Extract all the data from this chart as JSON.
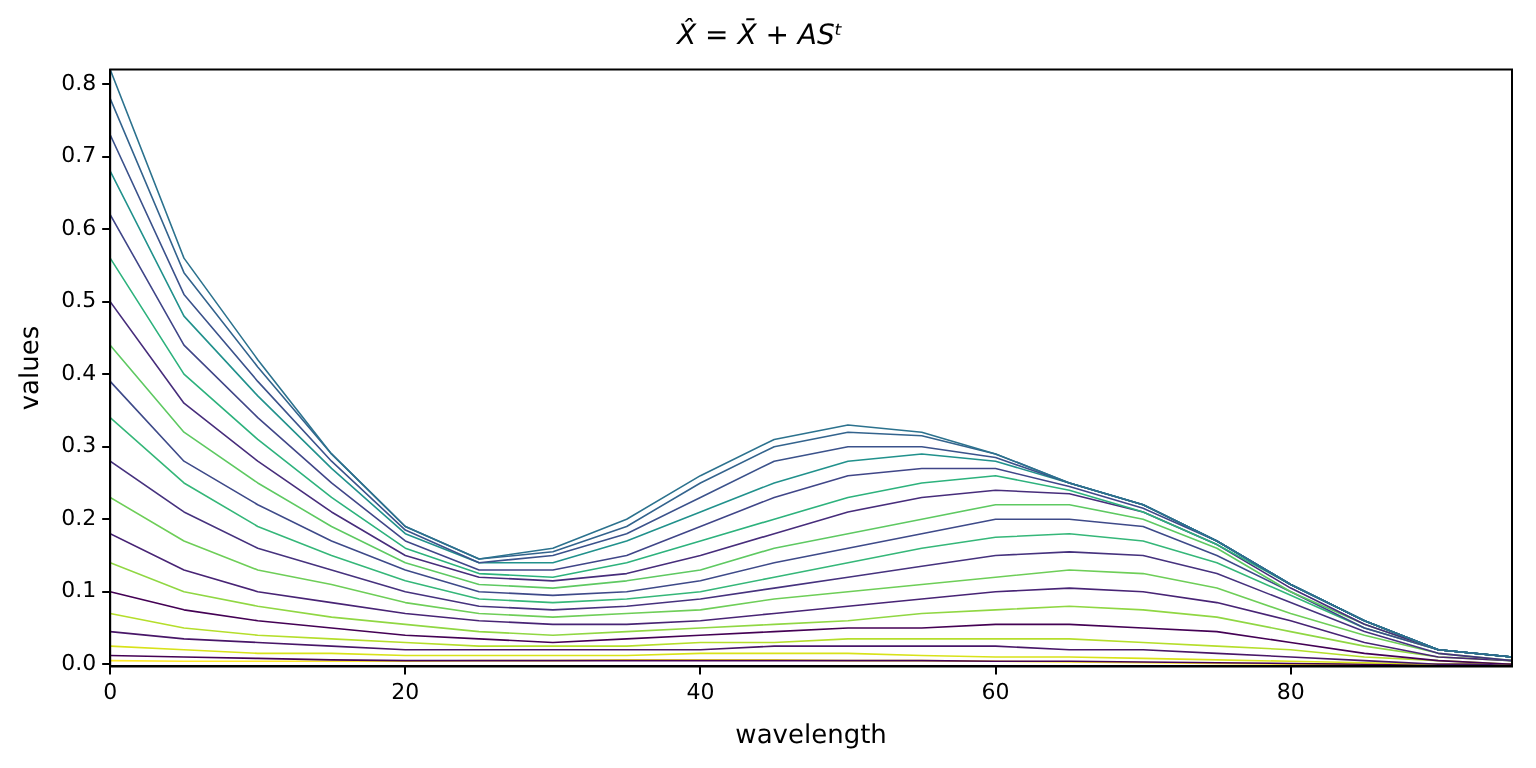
{
  "chart_data": {
    "type": "line",
    "title": "X̂ = X̄ + ASᵗ",
    "xlabel": "wavelength",
    "ylabel": "values",
    "x": [
      0,
      5,
      10,
      15,
      20,
      25,
      30,
      35,
      40,
      45,
      50,
      55,
      60,
      65,
      70,
      75,
      80,
      85,
      90,
      95
    ],
    "xlim": [
      0,
      95
    ],
    "xticks": [
      0,
      20,
      40,
      60,
      80
    ],
    "ylim": [
      -0.003,
      0.82
    ],
    "yticks": [
      {
        "value": 0,
        "label": "0.0"
      },
      0.1,
      0.2,
      0.3,
      0.4,
      0.5,
      0.6,
      0.7,
      0.8
    ],
    "grid": false,
    "legend": false,
    "series": [
      {
        "color": "#2c728e",
        "values": [
          0.82,
          0.56,
          0.42,
          0.29,
          0.19,
          0.145,
          0.16,
          0.2,
          0.26,
          0.31,
          0.33,
          0.32,
          0.29,
          0.25,
          0.22,
          0.17,
          0.11,
          0.06,
          0.02,
          0.01
        ]
      },
      {
        "color": "#33638d",
        "values": [
          0.78,
          0.54,
          0.41,
          0.29,
          0.19,
          0.145,
          0.155,
          0.19,
          0.25,
          0.3,
          0.32,
          0.315,
          0.29,
          0.25,
          0.22,
          0.17,
          0.11,
          0.06,
          0.02,
          0.01
        ]
      },
      {
        "color": "#3b528b",
        "values": [
          0.73,
          0.51,
          0.39,
          0.28,
          0.185,
          0.14,
          0.15,
          0.18,
          0.23,
          0.28,
          0.3,
          0.3,
          0.285,
          0.25,
          0.22,
          0.17,
          0.11,
          0.06,
          0.02,
          0.01
        ]
      },
      {
        "color": "#21918c",
        "values": [
          0.68,
          0.48,
          0.37,
          0.27,
          0.18,
          0.14,
          0.14,
          0.17,
          0.21,
          0.25,
          0.28,
          0.29,
          0.28,
          0.25,
          0.22,
          0.17,
          0.11,
          0.06,
          0.02,
          0.01
        ]
      },
      {
        "color": "#404688",
        "values": [
          0.62,
          0.44,
          0.34,
          0.25,
          0.17,
          0.13,
          0.13,
          0.15,
          0.19,
          0.23,
          0.26,
          0.27,
          0.27,
          0.245,
          0.215,
          0.17,
          0.11,
          0.06,
          0.02,
          0.01
        ]
      },
      {
        "color": "#2db27d",
        "values": [
          0.56,
          0.4,
          0.31,
          0.23,
          0.16,
          0.125,
          0.12,
          0.14,
          0.17,
          0.2,
          0.23,
          0.25,
          0.26,
          0.24,
          0.21,
          0.165,
          0.11,
          0.06,
          0.02,
          0.01
        ]
      },
      {
        "color": "#472d7b",
        "values": [
          0.5,
          0.36,
          0.28,
          0.21,
          0.15,
          0.12,
          0.115,
          0.125,
          0.15,
          0.18,
          0.21,
          0.23,
          0.24,
          0.235,
          0.21,
          0.165,
          0.105,
          0.055,
          0.02,
          0.01
        ]
      },
      {
        "color": "#5ec962",
        "values": [
          0.44,
          0.32,
          0.25,
          0.19,
          0.14,
          0.11,
          0.105,
          0.115,
          0.13,
          0.16,
          0.18,
          0.2,
          0.22,
          0.22,
          0.2,
          0.16,
          0.1,
          0.055,
          0.02,
          0.01
        ]
      },
      {
        "color": "#3e4a89",
        "values": [
          0.39,
          0.28,
          0.22,
          0.17,
          0.13,
          0.1,
          0.095,
          0.1,
          0.115,
          0.14,
          0.16,
          0.18,
          0.2,
          0.2,
          0.19,
          0.15,
          0.1,
          0.05,
          0.02,
          0.01
        ]
      },
      {
        "color": "#35b779",
        "values": [
          0.34,
          0.25,
          0.19,
          0.15,
          0.115,
          0.09,
          0.085,
          0.09,
          0.1,
          0.12,
          0.14,
          0.16,
          0.175,
          0.18,
          0.17,
          0.14,
          0.095,
          0.05,
          0.02,
          0.01
        ]
      },
      {
        "color": "#46327e",
        "values": [
          0.28,
          0.21,
          0.16,
          0.13,
          0.1,
          0.08,
          0.075,
          0.08,
          0.09,
          0.105,
          0.12,
          0.135,
          0.15,
          0.155,
          0.15,
          0.125,
          0.085,
          0.045,
          0.015,
          0.005
        ]
      },
      {
        "color": "#6ece58",
        "values": [
          0.23,
          0.17,
          0.13,
          0.11,
          0.085,
          0.07,
          0.065,
          0.07,
          0.075,
          0.09,
          0.1,
          0.11,
          0.12,
          0.13,
          0.125,
          0.105,
          0.07,
          0.04,
          0.015,
          0.005
        ]
      },
      {
        "color": "#482475",
        "values": [
          0.18,
          0.13,
          0.1,
          0.085,
          0.07,
          0.06,
          0.055,
          0.055,
          0.06,
          0.07,
          0.08,
          0.09,
          0.1,
          0.105,
          0.1,
          0.085,
          0.06,
          0.03,
          0.01,
          0.005
        ]
      },
      {
        "color": "#90d743",
        "values": [
          0.14,
          0.1,
          0.08,
          0.065,
          0.055,
          0.045,
          0.04,
          0.045,
          0.05,
          0.055,
          0.06,
          0.07,
          0.075,
          0.08,
          0.075,
          0.065,
          0.045,
          0.025,
          0.01,
          0.005
        ]
      },
      {
        "color": "#440154",
        "values": [
          0.1,
          0.075,
          0.06,
          0.05,
          0.04,
          0.035,
          0.03,
          0.035,
          0.04,
          0.045,
          0.05,
          0.05,
          0.055,
          0.055,
          0.05,
          0.045,
          0.03,
          0.015,
          0.005,
          0
        ]
      },
      {
        "color": "#b5de2b",
        "values": [
          0.07,
          0.05,
          0.04,
          0.035,
          0.03,
          0.025,
          0.025,
          0.025,
          0.03,
          0.03,
          0.035,
          0.035,
          0.035,
          0.035,
          0.03,
          0.025,
          0.02,
          0.01,
          0.005,
          0
        ]
      },
      {
        "color": "#481668",
        "values": [
          0.045,
          0.035,
          0.03,
          0.025,
          0.02,
          0.02,
          0.02,
          0.02,
          0.02,
          0.025,
          0.025,
          0.025,
          0.025,
          0.02,
          0.02,
          0.015,
          0.01,
          0.005,
          0,
          0
        ]
      },
      {
        "color": "#d8e219",
        "values": [
          0.025,
          0.02,
          0.015,
          0.015,
          0.012,
          0.012,
          0.012,
          0.012,
          0.015,
          0.015,
          0.015,
          0.012,
          0.01,
          0.01,
          0.008,
          0.006,
          0.004,
          0.002,
          0,
          0
        ]
      },
      {
        "color": "#440154",
        "values": [
          0.012,
          0.01,
          0.008,
          0.006,
          0.005,
          0.005,
          0.005,
          0.005,
          0.005,
          0.005,
          0.005,
          0.005,
          0.004,
          0.004,
          0.003,
          0.002,
          0.001,
          0,
          0,
          0
        ]
      },
      {
        "color": "#fde725",
        "values": [
          0.005,
          0.004,
          0.004,
          0.004,
          0.004,
          0.005,
          0.005,
          0.006,
          0.006,
          0.006,
          0.005,
          0.005,
          0.004,
          0.003,
          0.002,
          0.001,
          0,
          0,
          0,
          0
        ]
      }
    ]
  }
}
